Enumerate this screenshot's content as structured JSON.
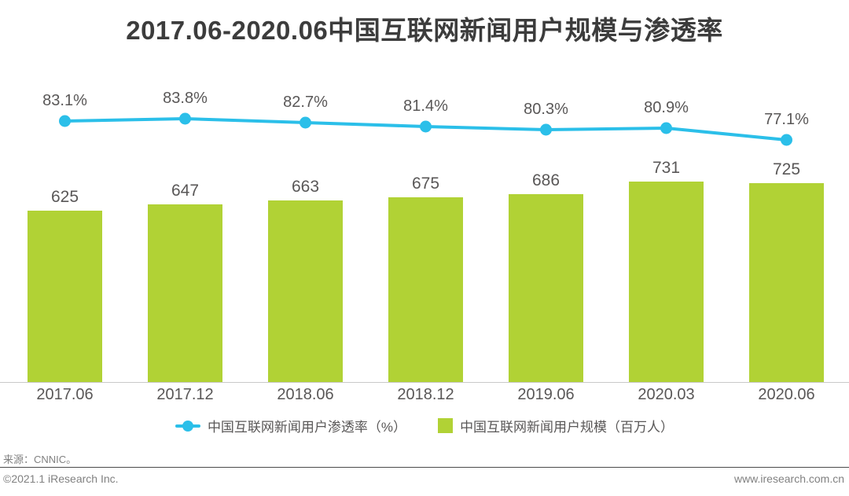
{
  "page": {
    "title": "2017.06-2020.06中国互联网新闻用户规模与渗透率",
    "source_note": "来源：CNNIC。",
    "footer": {
      "copyright": "©2021.1 iResearch Inc.",
      "website": "www.iresearch.com.cn"
    }
  },
  "colors": {
    "bar": "#b1d235",
    "line": "#2bbfe9",
    "label_text": "#595757",
    "title_text": "#3c3c3c",
    "axis_line": "#c9c9c9",
    "divider": "#4b4b4b",
    "footer_text": "#818181"
  },
  "chart_data": {
    "type": "combo",
    "categories": [
      "2017.06",
      "2017.12",
      "2018.06",
      "2018.12",
      "2019.06",
      "2020.03",
      "2020.06"
    ],
    "series": [
      {
        "name": "中国互联网新闻用户渗透率（%）",
        "type": "line",
        "values": [
          83.1,
          83.8,
          82.7,
          81.4,
          80.3,
          80.9,
          77.1
        ],
        "labels": [
          "83.1%",
          "83.8%",
          "82.7%",
          "81.4%",
          "80.3%",
          "80.9%",
          "77.1%"
        ],
        "color": "#2bbfe9"
      },
      {
        "name": "中国互联网新闻用户规模（百万人）",
        "type": "bar",
        "values": [
          625,
          647,
          663,
          675,
          686,
          731,
          725
        ],
        "labels": [
          "625",
          "647",
          "663",
          "675",
          "686",
          "731",
          "725"
        ],
        "color": "#b1d235"
      }
    ],
    "bar_axis_origin": 0,
    "grid": false,
    "legend_position": "bottom",
    "data_labels": true
  }
}
